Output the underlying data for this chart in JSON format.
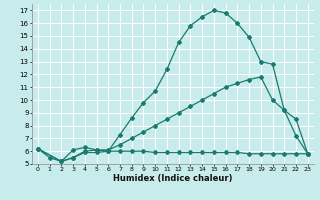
{
  "xlabel": "Humidex (Indice chaleur)",
  "bg_color": "#c8ecec",
  "grid_color": "#ffffff",
  "line_color": "#1a7a6e",
  "xlim": [
    -0.5,
    23.5
  ],
  "ylim": [
    5,
    17.5
  ],
  "xticks": [
    0,
    1,
    2,
    3,
    4,
    5,
    6,
    7,
    8,
    9,
    10,
    11,
    12,
    13,
    14,
    15,
    16,
    17,
    18,
    19,
    20,
    21,
    22,
    23
  ],
  "yticks": [
    5,
    6,
    7,
    8,
    9,
    10,
    11,
    12,
    13,
    14,
    15,
    16,
    17
  ],
  "curve1_x": [
    0,
    1,
    2,
    3,
    4,
    5,
    6,
    7,
    8,
    9,
    10,
    11,
    12,
    13,
    14,
    15,
    16,
    17,
    18,
    19,
    20,
    21,
    22,
    23
  ],
  "curve1_y": [
    6.2,
    5.5,
    5.2,
    6.1,
    6.3,
    6.1,
    6.0,
    7.3,
    8.6,
    9.8,
    10.7,
    12.4,
    14.5,
    15.8,
    16.5,
    17.0,
    16.8,
    16.0,
    14.9,
    13.0,
    12.8,
    9.2,
    7.2,
    5.8
  ],
  "curve2_x": [
    0,
    2,
    3,
    4,
    5,
    6,
    7,
    8,
    9,
    10,
    11,
    12,
    13,
    14,
    15,
    16,
    17,
    18,
    19,
    20,
    21,
    22,
    23
  ],
  "curve2_y": [
    6.2,
    5.2,
    5.5,
    6.0,
    6.1,
    6.1,
    6.5,
    7.0,
    7.5,
    8.0,
    8.5,
    9.0,
    9.5,
    10.0,
    10.5,
    11.0,
    11.3,
    11.6,
    11.8,
    10.0,
    9.2,
    8.5,
    5.8
  ],
  "curve3_x": [
    0,
    2,
    3,
    4,
    5,
    6,
    7,
    8,
    9,
    10,
    11,
    12,
    13,
    14,
    15,
    16,
    17,
    18,
    19,
    20,
    21,
    22,
    23
  ],
  "curve3_y": [
    6.2,
    5.2,
    5.5,
    5.9,
    5.9,
    6.0,
    6.0,
    6.0,
    6.0,
    5.9,
    5.9,
    5.9,
    5.9,
    5.9,
    5.9,
    5.9,
    5.9,
    5.8,
    5.8,
    5.8,
    5.8,
    5.8,
    5.8
  ]
}
